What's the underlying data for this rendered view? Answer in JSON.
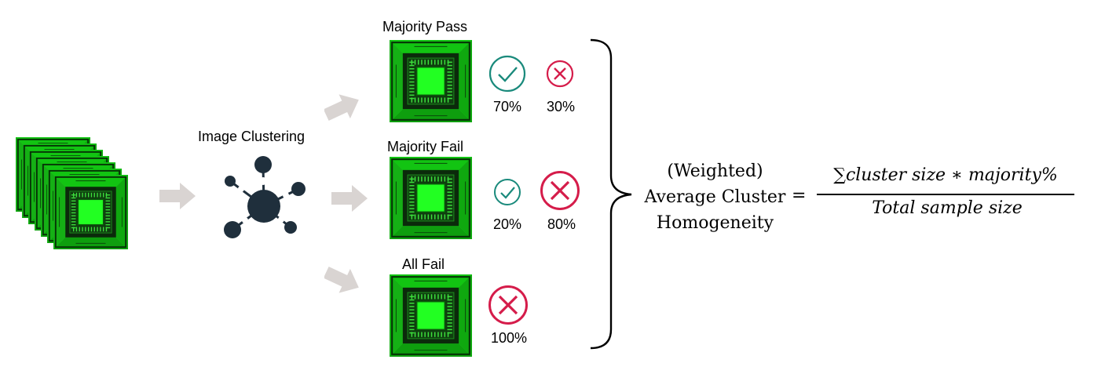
{
  "pipeline": {
    "clustering_label": "Image Clustering"
  },
  "clusters": [
    {
      "title": "Majority Pass",
      "pass_pct": "70%",
      "fail_pct": "30%"
    },
    {
      "title": "Majority Fail",
      "pass_pct": "20%",
      "fail_pct": "80%"
    },
    {
      "title": "All Fail",
      "fail_pct": "100%"
    }
  ],
  "formula": {
    "lhs_line1": "(Weighted)",
    "lhs_line2": "Average Cluster",
    "lhs_line3": "Homogeneity",
    "equals": "=",
    "numerator_sum": "∑",
    "numerator": "cluster size  ∗ majority%",
    "denominator": "Total sample size"
  },
  "colors": {
    "pass": "#1a8a7c",
    "fail": "#d51c4a",
    "arrow": "#d9d4d2",
    "network": "#1f2f3c",
    "chip_green": "#19ff19",
    "chip_dark": "#0b2a0b"
  }
}
